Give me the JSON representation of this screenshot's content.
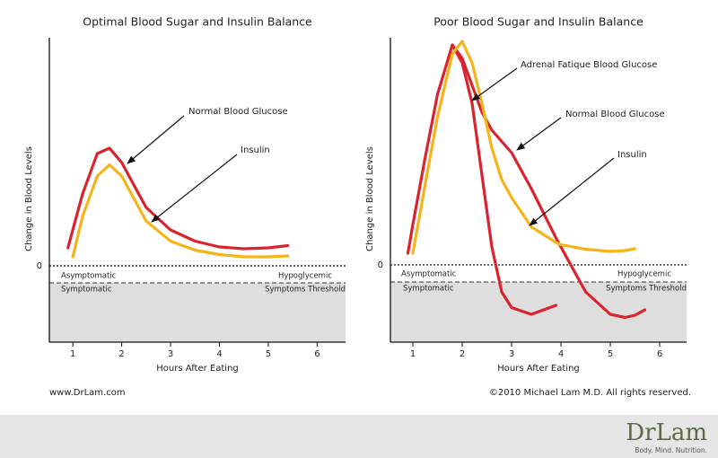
{
  "chart_data": [
    {
      "type": "line",
      "title": "Optimal Blood Sugar and Insulin Balance",
      "x_label": "Hours After Eating",
      "y_label": "Change in Blood Levels",
      "x": [
        0.9,
        1.0,
        1.2,
        1.5,
        1.75,
        2.0,
        2.5,
        3.0,
        3.5,
        4.0,
        4.5,
        5.0,
        5.4
      ],
      "series": [
        {
          "name": "Normal Blood Glucose",
          "color": "#d9232e",
          "values": [
            0.4,
            0.8,
            1.6,
            2.5,
            2.62,
            2.3,
            1.3,
            0.8,
            0.55,
            0.42,
            0.38,
            0.4,
            0.45
          ]
        },
        {
          "name": "Insulin",
          "color": "#f5b41a",
          "values": [
            null,
            0.2,
            1.1,
            2.0,
            2.25,
            2.0,
            1.0,
            0.55,
            0.35,
            0.25,
            0.2,
            0.2,
            0.22
          ]
        }
      ],
      "xlim": [
        0.52,
        6.58
      ],
      "xticks": [
        1,
        2,
        3,
        4,
        5,
        6
      ],
      "ylim": [
        -1.7,
        5.08
      ],
      "yticks": [
        0
      ],
      "threshold": -0.38,
      "zone_labels": [
        "Asymptomatic",
        "Symptomatic",
        "Hypoglycemic",
        "Symptoms Threshold"
      ]
    },
    {
      "type": "line",
      "title": "Poor Blood Sugar and Insulin Balance",
      "x_label": "Hours After Eating",
      "y_label": "Change in Blood Levels",
      "x": [
        0.9,
        1.0,
        1.25,
        1.5,
        1.8,
        2.0,
        2.2,
        2.4,
        2.6,
        2.8,
        3.0,
        3.4,
        3.9,
        4.0,
        4.5,
        5.0,
        5.3,
        5.5,
        5.7
      ],
      "series": [
        {
          "name": "Adrenal Fatique Blood Glucose",
          "color": "#d9232e",
          "values": [
            null,
            null,
            null,
            null,
            4.9,
            4.5,
            3.6,
            2.0,
            0.4,
            -0.6,
            -0.95,
            -1.1,
            -0.9,
            null,
            null,
            null,
            null,
            null,
            null
          ]
        },
        {
          "name": "Normal Blood Glucose",
          "color": "#d9232e",
          "values": [
            0.26,
            0.9,
            2.4,
            3.8,
            4.9,
            4.6,
            4.0,
            3.4,
            3.0,
            2.75,
            2.5,
            1.7,
            0.6,
            0.4,
            -0.6,
            -1.1,
            -1.17,
            -1.12,
            -1.0
          ]
        },
        {
          "name": "Insulin",
          "color": "#f5b41a",
          "values": [
            null,
            0.26,
            1.8,
            3.3,
            4.7,
            4.98,
            4.5,
            3.6,
            2.6,
            1.9,
            1.5,
            0.85,
            0.5,
            0.45,
            0.35,
            0.3,
            0.32,
            0.36,
            null
          ]
        }
      ],
      "xlim": [
        0.545,
        6.545
      ],
      "xticks": [
        1,
        2,
        3,
        4,
        5,
        6
      ],
      "ylim": [
        -1.72,
        5.06
      ],
      "yticks": [
        0
      ],
      "threshold": -0.38,
      "zone_labels": [
        "Asymptomatic",
        "Symptomatic",
        "Hypoglycemic",
        "Symptoms Threshold"
      ]
    }
  ],
  "footer": {
    "website": "www.DrLam.com",
    "copyright": "©2010 Michael Lam M.D. All rights reserved.",
    "logo": "DrLam",
    "tagline": "Body. Mind. Nutrition."
  }
}
